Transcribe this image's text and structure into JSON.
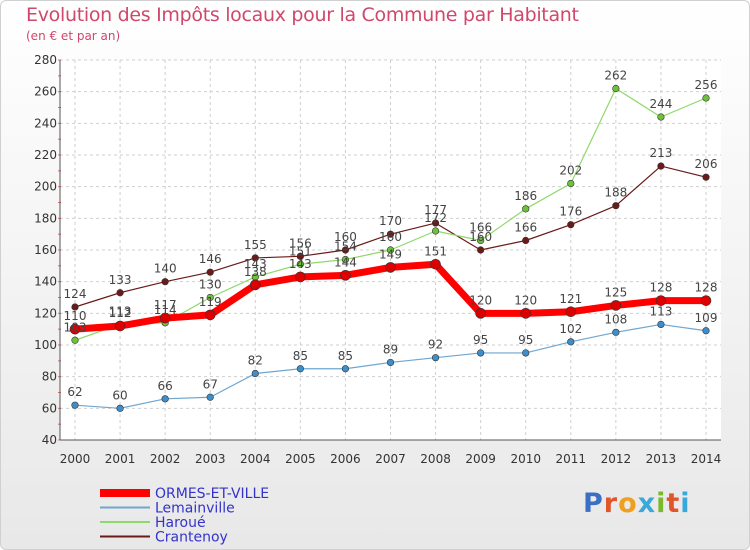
{
  "title": "Evolution des Impôts locaux pour la Commune par Habitant",
  "subtitle": "(en € et par an)",
  "logo": {
    "text": "Proxiti",
    "letters": [
      {
        "ch": "P",
        "color": "#3a6fc4"
      },
      {
        "ch": "r",
        "color": "#e2542a"
      },
      {
        "ch": "o",
        "color": "#f0a020"
      },
      {
        "ch": "x",
        "color": "#39a9dc"
      },
      {
        "ch": "i",
        "color": "#7ab929"
      },
      {
        "ch": "t",
        "color": "#e2542a"
      },
      {
        "ch": "i",
        "color": "#39a9dc"
      }
    ]
  },
  "chart_data": {
    "type": "line",
    "x": [
      "2000",
      "2001",
      "2002",
      "2003",
      "2004",
      "2005",
      "2006",
      "2007",
      "2008",
      "2009",
      "2010",
      "2011",
      "2012",
      "2013",
      "2014"
    ],
    "ylim": [
      40,
      280
    ],
    "yticks": [
      40,
      60,
      80,
      100,
      120,
      140,
      160,
      180,
      200,
      220,
      240,
      260,
      280
    ],
    "grid": true,
    "legend_position": "bottom-left",
    "series": [
      {
        "name": "Crantenoy",
        "color": "#6b1a1a",
        "dot": "#6b1a1a",
        "width": 1.2,
        "values": [
          124,
          133,
          140,
          146,
          155,
          156,
          160,
          170,
          177,
          160,
          166,
          176,
          188,
          213,
          206
        ]
      },
      {
        "name": "Haroué",
        "color": "#8fd86a",
        "dot": "#6cc23a",
        "width": 1.2,
        "values": [
          103,
          113,
          114,
          130,
          143,
          151,
          154,
          160,
          172,
          166,
          186,
          202,
          262,
          244,
          256
        ]
      },
      {
        "name": "Lemainville",
        "color": "#6fa6d0",
        "dot": "#3d8fcc",
        "width": 1.2,
        "values": [
          62,
          60,
          66,
          67,
          82,
          85,
          85,
          89,
          92,
          95,
          95,
          102,
          108,
          113,
          109
        ]
      },
      {
        "name": "ORMES-ET-VILLE",
        "color": "#ff0000",
        "dot": "#dd0000",
        "width": 7,
        "values": [
          110,
          112,
          117,
          119,
          138,
          143,
          144,
          149,
          151,
          120,
          120,
          121,
          125,
          128,
          128
        ]
      }
    ],
    "labels": [
      {
        "series": 0,
        "values": [
          "124",
          "133",
          "140",
          "146",
          "155",
          "156",
          "160",
          "170",
          "177",
          "160",
          "166",
          "176",
          "188",
          "213",
          "206"
        ]
      },
      {
        "series": 1,
        "values": [
          "103",
          "113",
          "114",
          "130",
          "143",
          "151",
          "154",
          "160",
          "172",
          "166",
          "186",
          "202",
          "262",
          "244",
          "256"
        ]
      },
      {
        "series": 2,
        "values": [
          "62",
          "60",
          "66",
          "67",
          "82",
          "85",
          "85",
          "89",
          "92",
          "95",
          "95",
          "102",
          "108",
          "113",
          "109"
        ]
      },
      {
        "series": 3,
        "values": [
          "110",
          "112",
          "117",
          "119",
          "138",
          "143",
          "144",
          "149",
          "151",
          "120",
          "120",
          "121",
          "125",
          "128",
          "128"
        ]
      }
    ],
    "legend_order": [
      3,
      2,
      1,
      0
    ]
  }
}
